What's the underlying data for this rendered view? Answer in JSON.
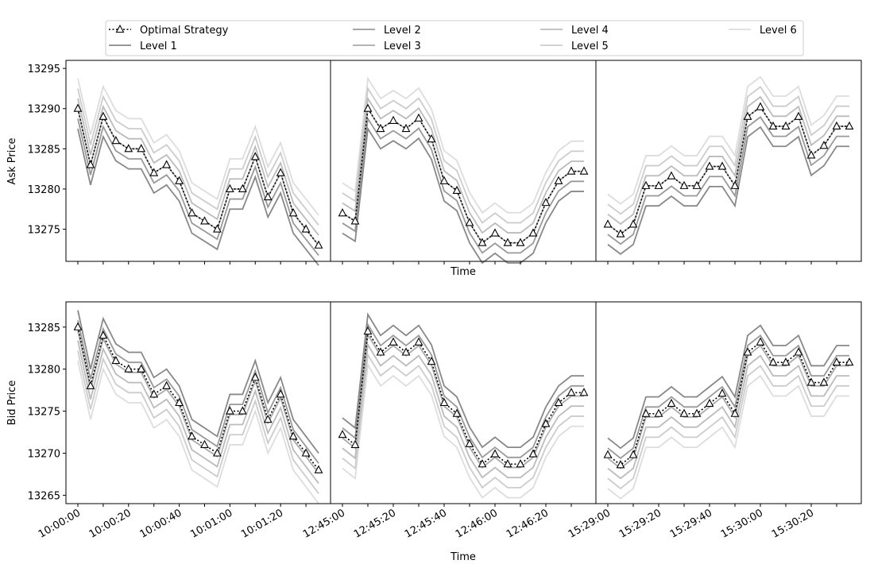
{
  "chart_data": {
    "type": "line",
    "legend": {
      "placement": "top-center",
      "entries": [
        {
          "key": "optimal",
          "label": "Optimal Strategy"
        },
        {
          "key": "level1",
          "label": "Level 1"
        },
        {
          "key": "level2",
          "label": "Level 2"
        },
        {
          "key": "level3",
          "label": "Level 3"
        },
        {
          "key": "level4",
          "label": "Level 4"
        },
        {
          "key": "level5",
          "label": "Level 5"
        },
        {
          "key": "level6",
          "label": "Level 6"
        }
      ]
    },
    "styles": {
      "optimal": {
        "color": "#000000",
        "dash": "dotted",
        "marker": "triangle"
      },
      "levels": [
        "#888888",
        "#999999",
        "#aaaaaa",
        "#bbbbbb",
        "#cccccc",
        "#dddddd"
      ]
    },
    "rows": [
      {
        "ylabel": "Ask Price",
        "ylim": [
          13271,
          13296
        ],
        "yticks": [
          13275,
          13280,
          13285,
          13290,
          13295
        ]
      },
      {
        "ylabel": "Bid Price",
        "ylim": [
          13264,
          13288
        ],
        "yticks": [
          13265,
          13270,
          13275,
          13280,
          13285
        ]
      }
    ],
    "xlabel_top": "Time",
    "xlabel_bottom": "Time",
    "columns": [
      {
        "tick_labels": [
          "10:00:00",
          "10:00:20",
          "10:00:40",
          "10:01:00",
          "10:01:20"
        ],
        "ask_optimal": [
          13290,
          13283,
          13289,
          13286,
          13285,
          13285,
          13282,
          13283,
          13281,
          13277,
          13276,
          13275,
          13280,
          13280,
          13284,
          13279,
          13282,
          13277,
          13275,
          13273
        ],
        "bid_optimal": [
          13285,
          13278,
          13284,
          13281,
          13280,
          13280,
          13277,
          13278,
          13276,
          13272,
          13271,
          13270,
          13275,
          13275,
          13279,
          13274,
          13277,
          13272,
          13270,
          13268
        ]
      },
      {
        "tick_labels": [
          "12:45:00",
          "12:45:20",
          "12:45:40",
          "12:46:00",
          "12:46:20"
        ],
        "ask_optimal": [
          13277,
          13276,
          13290,
          13287.5,
          13288.5,
          13287.5,
          13288.8,
          13286.2,
          13281,
          13279.8,
          13275.8,
          13273.3,
          13274.5,
          13273.3,
          13273.3,
          13274.5,
          13278.3,
          13281,
          13282.2,
          13282.2
        ],
        "bid_optimal": [
          13272.2,
          13271,
          13284.5,
          13282,
          13283.2,
          13282,
          13283.2,
          13280.9,
          13276,
          13274.7,
          13271.1,
          13268.7,
          13269.9,
          13268.7,
          13268.7,
          13269.9,
          13273.5,
          13276,
          13277.2,
          13277.2
        ]
      },
      {
        "tick_labels": [
          "15:29:00",
          "15:29:20",
          "15:29:40",
          "15:30:00",
          "15:30:20"
        ],
        "ask_optimal": [
          13275.6,
          13274.4,
          13275.6,
          13280.4,
          13280.4,
          13281.6,
          13280.4,
          13280.4,
          13282.8,
          13282.8,
          13280.4,
          13289,
          13290.2,
          13287.8,
          13287.8,
          13289,
          13284.2,
          13285.4,
          13287.8,
          13287.8
        ],
        "bid_optimal": [
          13269.8,
          13268.6,
          13269.8,
          13274.7,
          13274.7,
          13275.9,
          13274.7,
          13274.7,
          13275.9,
          13277.1,
          13274.7,
          13282,
          13283.2,
          13280.8,
          13280.8,
          13282,
          13278.4,
          13278.4,
          13280.8,
          13280.8
        ]
      }
    ]
  }
}
